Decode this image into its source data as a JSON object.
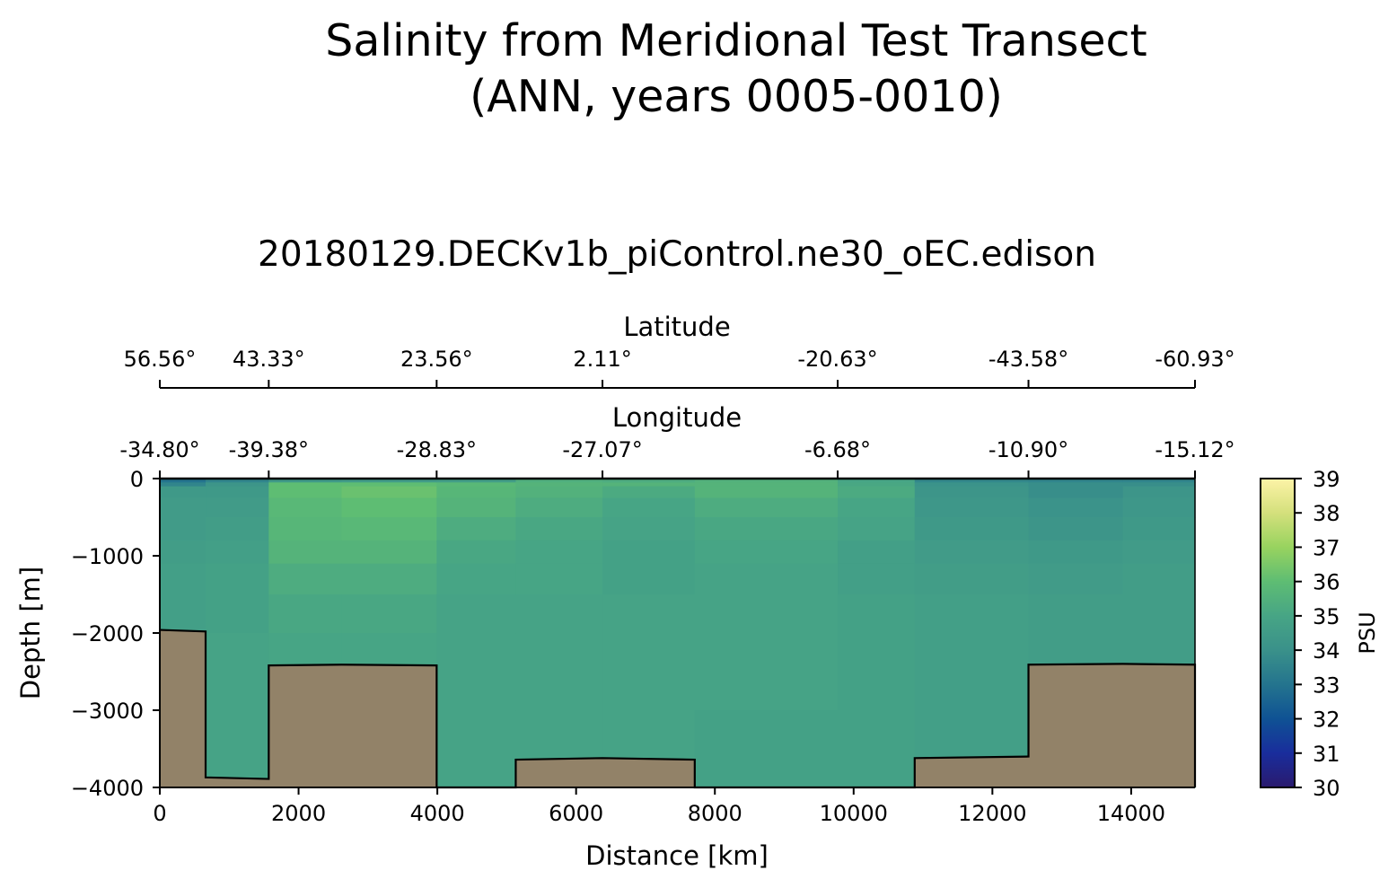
{
  "chart_data": {
    "type": "heatmap",
    "suptitle_lines": [
      "Salinity from Meridional Test Transect",
      "(ANN, years 0005-0010)"
    ],
    "title": "20180129.DECKv1b_piControl.ne30_oEC.edison",
    "xlabel": "Distance [km]",
    "ylabel": "Depth [m]",
    "xlim": [
      0,
      14920
    ],
    "ylim": [
      -4000,
      0
    ],
    "x_ticks": [
      0,
      2000,
      4000,
      6000,
      8000,
      10000,
      12000,
      14000
    ],
    "x_tick_labels": [
      "0",
      "2000",
      "4000",
      "6000",
      "8000",
      "10000",
      "12000",
      "14000"
    ],
    "y_ticks": [
      0,
      -1000,
      -2000,
      -3000,
      -4000
    ],
    "y_tick_labels": [
      "0",
      "−1000",
      "−2000",
      "−3000",
      "−4000"
    ],
    "top_axes": [
      {
        "label": "Latitude",
        "positions_km": [
          0,
          1570,
          3990,
          6380,
          9770,
          12520,
          14920
        ],
        "tick_labels": [
          "56.56°",
          "43.33°",
          "23.56°",
          "2.11°",
          "-20.63°",
          "-43.58°",
          "-60.93°"
        ]
      },
      {
        "label": "Longitude",
        "positions_km": [
          0,
          1570,
          3990,
          6380,
          9770,
          12520,
          14920
        ],
        "tick_labels": [
          "-34.80°",
          "-39.38°",
          "-28.83°",
          "-27.07°",
          "-6.68°",
          "-10.90°",
          "-15.12°"
        ]
      }
    ],
    "colorbar": {
      "label": "PSU",
      "min": 30,
      "max": 39,
      "ticks": [
        30,
        31,
        32,
        33,
        34,
        35,
        36,
        37,
        38,
        39
      ],
      "colors": [
        "#2a1a6e",
        "#192d9c",
        "#0f5294",
        "#24748e",
        "#3a918a",
        "#47a585",
        "#5ebd73",
        "#98d35f",
        "#d4e07c",
        "#fdf3a7"
      ]
    },
    "columns_x_km": [
      0,
      660,
      1570,
      2620,
      3990,
      5130,
      6380,
      7710,
      9770,
      10880,
      12520,
      13880,
      14920
    ],
    "levels_depth_m": [
      0,
      -50,
      -100,
      -250,
      -500,
      -800,
      -1100,
      -1500,
      -2000,
      -3000,
      -4000
    ],
    "salinity_psu": [
      [
        33.0,
        33.6,
        34.4,
        34.5,
        34.5,
        34.6,
        34.7,
        34.7,
        34.7,
        34.8
      ],
      [
        33.6,
        34.2,
        34.4,
        34.5,
        34.6,
        34.7,
        34.8,
        34.8,
        34.9,
        34.9
      ],
      [
        34.4,
        36.0,
        36.0,
        35.8,
        35.7,
        35.6,
        35.3,
        35.1,
        35.0,
        34.9
      ],
      [
        34.5,
        36.0,
        36.2,
        36.0,
        35.8,
        35.6,
        35.3,
        35.1,
        35.0,
        34.9
      ],
      [
        34.6,
        35.8,
        35.7,
        35.6,
        35.3,
        35.1,
        35.0,
        34.9,
        34.9,
        34.9
      ],
      [
        35.4,
        35.6,
        35.5,
        35.3,
        35.1,
        35.0,
        35.0,
        34.9,
        34.9,
        34.9
      ],
      [
        35.3,
        35.6,
        35.2,
        35.0,
        34.9,
        34.8,
        34.8,
        34.9,
        34.9,
        34.9
      ],
      [
        35.5,
        35.6,
        35.6,
        35.3,
        35.1,
        35.0,
        34.9,
        34.9,
        34.9,
        34.8
      ],
      [
        35.0,
        35.1,
        35.2,
        35.0,
        34.9,
        34.7,
        34.7,
        34.8,
        34.8,
        34.8
      ],
      [
        33.7,
        34.1,
        34.2,
        34.3,
        34.4,
        34.5,
        34.6,
        34.7,
        34.7,
        34.7
      ],
      [
        33.6,
        33.9,
        33.9,
        34.1,
        34.2,
        34.4,
        34.5,
        34.6,
        34.6,
        34.7
      ],
      [
        33.6,
        33.9,
        34.2,
        34.3,
        34.4,
        34.5,
        34.6,
        34.6,
        34.6,
        34.7
      ]
    ],
    "bathymetry_km_m": [
      [
        0,
        -1960
      ],
      [
        660,
        -1980
      ],
      [
        660,
        -3870
      ],
      [
        1570,
        -3890
      ],
      [
        1570,
        -2420
      ],
      [
        2620,
        -2410
      ],
      [
        3990,
        -2420
      ],
      [
        3990,
        -4000
      ],
      [
        5130,
        -4000
      ],
      [
        5130,
        -3640
      ],
      [
        6380,
        -3620
      ],
      [
        7710,
        -3640
      ],
      [
        7710,
        -4000
      ],
      [
        10880,
        -4000
      ],
      [
        10880,
        -3620
      ],
      [
        12520,
        -3600
      ],
      [
        12520,
        -2410
      ],
      [
        13880,
        -2400
      ],
      [
        14920,
        -2410
      ],
      [
        14920,
        -4000
      ]
    ],
    "land_color": "#928268"
  }
}
